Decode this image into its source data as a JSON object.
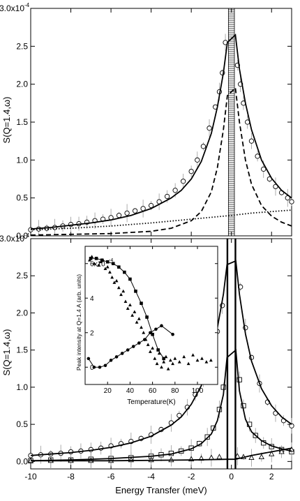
{
  "chart_data": [
    {
      "type": "scatter",
      "panel": "top",
      "ylabel": "S(Q=1.4,ω)",
      "xlabel": "",
      "xlim": [
        -10,
        3
      ],
      "ylim": [
        0,
        0.0003
      ],
      "x_ticks": [
        -10,
        -8,
        -6,
        -4,
        -2,
        0,
        2
      ],
      "x_ticklabels_shown": false,
      "y_ticks": [
        0.0,
        5e-05,
        0.0001,
        0.00015,
        0.0002,
        0.00025,
        0.0003
      ],
      "y_ticklabels": [
        "0.0",
        "0.5",
        "1.0",
        "1.5",
        "2.0",
        "2.5",
        "3.0x10"
      ],
      "y_multiplier_exponent": "-4",
      "shaded_band_x": [
        -0.15,
        0.15
      ],
      "series": [
        {
          "kind": "points",
          "marker": "open-circle",
          "x": [
            -10,
            -9.6,
            -9.2,
            -8.8,
            -8.4,
            -8.0,
            -7.6,
            -7.2,
            -6.8,
            -6.4,
            -6.0,
            -5.6,
            -5.2,
            -4.8,
            -4.4,
            -4.0,
            -3.6,
            -3.2,
            -2.8,
            -2.4,
            -2.0,
            -1.7,
            -1.4,
            -1.1,
            -0.8,
            -0.6,
            -0.45,
            -0.3,
            0.3,
            0.45,
            0.6,
            0.8,
            1.0,
            1.3,
            1.6,
            1.9,
            2.2,
            2.5,
            2.8,
            3.0
          ],
          "y": [
            8e-06,
            9e-06,
            1e-05,
            1.1e-05,
            1.3e-05,
            1.5e-05,
            1.6e-05,
            1.8e-05,
            2e-05,
            2.2e-05,
            2.4e-05,
            2.7e-05,
            3e-05,
            3.3e-05,
            3.6e-05,
            4e-05,
            4.5e-05,
            5.2e-05,
            6e-05,
            7.2e-05,
            8.5e-05,
            0.0001,
            0.000118,
            0.000142,
            0.00017,
            0.00019,
            0.000215,
            0.000255,
            0.000225,
            0.0002,
            0.000175,
            0.00015,
            0.000125,
            0.000105,
            8.8e-05,
            7.5e-05,
            6.5e-05,
            5.7e-05,
            5e-05,
            4.5e-05
          ]
        },
        {
          "kind": "line",
          "style": "solid",
          "x": [
            -10,
            -9,
            -8,
            -7,
            -6,
            -5,
            -4,
            -3,
            -2.5,
            -2,
            -1.5,
            -1.0,
            -0.7,
            -0.4,
            -0.2,
            0.2,
            0.4,
            0.7,
            1.0,
            1.5,
            2.0,
            2.5,
            3.0
          ],
          "y": [
            9e-06,
            1.1e-05,
            1.4e-05,
            1.7e-05,
            2.1e-05,
            2.7e-05,
            3.6e-05,
            5e-05,
            6e-05,
            7.5e-05,
            9.8e-05,
            0.000135,
            0.00017,
            0.000215,
            0.000255,
            0.000265,
            0.00022,
            0.000175,
            0.00014,
            0.0001,
            7.6e-05,
            6e-05,
            5e-05
          ]
        },
        {
          "kind": "line",
          "style": "dashed",
          "x": [
            -10,
            -8,
            -6,
            -4,
            -3,
            -2,
            -1.5,
            -1.0,
            -0.7,
            -0.4,
            -0.2,
            0.2,
            0.4,
            0.7,
            1.0,
            1.5,
            2.0,
            2.5,
            3.0
          ],
          "y": [
            1e-06,
            2e-06,
            3e-06,
            6e-06,
            1e-05,
            2e-05,
            3.2e-05,
            5.8e-05,
            9e-05,
            0.00014,
            0.000185,
            0.000195,
            0.00015,
            0.0001,
            6.8e-05,
            4e-05,
            2.6e-05,
            1.8e-05,
            1.3e-05
          ]
        },
        {
          "kind": "line",
          "style": "dotted",
          "x": [
            -10,
            -8,
            -6,
            -4,
            -2,
            0,
            1,
            2,
            3
          ],
          "y": [
            8e-06,
            1e-05,
            1.3e-05,
            1.7e-05,
            2.2e-05,
            2.7e-05,
            3e-05,
            3.2e-05,
            3.4e-05
          ]
        }
      ]
    },
    {
      "type": "scatter",
      "panel": "bottom",
      "ylabel": "S(Q=1.4,ω)",
      "xlabel": "Energy Transfer (meV)",
      "xlim": [
        -10,
        3
      ],
      "ylim": [
        -1e-05,
        0.0003
      ],
      "x_ticks": [
        -10,
        -8,
        -6,
        -4,
        -2,
        0,
        2
      ],
      "x_ticklabels": [
        "-10",
        "-8",
        "-6",
        "-4",
        "-2",
        "0",
        "2"
      ],
      "y_ticks": [
        0.0,
        5e-05,
        0.0001,
        0.00015,
        0.0002,
        0.00025,
        0.0003
      ],
      "y_ticklabels": [
        "0.0",
        "0.5",
        "1.0",
        "1.5",
        "2.0",
        "2.5",
        "3.0x10"
      ],
      "y_multiplier_exponent": "-4",
      "elastic_lines_x": [
        -0.2,
        0.2
      ],
      "series": [
        {
          "kind": "points",
          "marker": "open-circle",
          "x": [
            -10,
            -9.5,
            -9.0,
            -8.5,
            -8.0,
            -7.5,
            -7.0,
            -6.5,
            -6.0,
            -5.5,
            -5.0,
            -4.5,
            -4.0,
            -3.5,
            -3.0,
            -2.6,
            -2.2,
            -1.8,
            -1.4,
            -1.0,
            -0.7,
            -0.45,
            0.45,
            0.7,
            1.0,
            1.4,
            1.8,
            2.2,
            2.6,
            3.0
          ],
          "y": [
            8e-06,
            9e-06,
            1e-05,
            1.1e-05,
            1.3e-05,
            1.4e-05,
            1.6e-05,
            1.8e-05,
            2.1e-05,
            2.4e-05,
            2.7e-05,
            3.1e-05,
            3.6e-05,
            4.3e-05,
            5.2e-05,
            6.2e-05,
            7.3e-05,
            9e-05,
            0.00011,
            0.00014,
            0.000175,
            0.00021,
            0.000235,
            0.00018,
            0.00014,
            0.000105,
            8e-05,
            6.5e-05,
            5.5e-05,
            4.8e-05
          ]
        },
        {
          "kind": "points",
          "marker": "open-square",
          "x": [
            -10,
            -9,
            -8,
            -7,
            -6,
            -5,
            -4,
            -3.5,
            -3,
            -2.5,
            -2,
            -1.6,
            -1.2,
            -0.9,
            -0.6,
            -0.4,
            0.4,
            0.6,
            0.9,
            1.2,
            1.6,
            2.0,
            2.5,
            3.0
          ],
          "y": [
            1e-06,
            2e-06,
            2e-06,
            3e-06,
            4e-06,
            5e-06,
            7e-06,
            9e-06,
            1.1e-05,
            1.4e-05,
            1.8e-05,
            2.4e-05,
            3.3e-05,
            4.5e-05,
            7e-05,
            0.0001,
            0.00011,
            7.5e-05,
            5e-05,
            3.5e-05,
            2.5e-05,
            2e-05,
            1.6e-05,
            1.3e-05
          ]
        },
        {
          "kind": "points",
          "marker": "open-triangle",
          "x": [
            -10,
            -9,
            -8,
            -7,
            -6,
            -5,
            -4,
            -3,
            -2,
            -1.5,
            -1,
            -0.6,
            0.3,
            0.6,
            1,
            1.5,
            2,
            2.5,
            3
          ],
          "y": [
            1e-06,
            1e-06,
            1e-06,
            1e-06,
            1e-06,
            2e-06,
            2e-06,
            2e-06,
            3e-06,
            4e-06,
            5e-06,
            6e-06,
            7e-06,
            6e-06,
            5e-06,
            6e-06,
            1e-05,
            1.3e-05,
            1.6e-05
          ]
        },
        {
          "kind": "line",
          "style": "solid",
          "x": [
            -10,
            -9,
            -8,
            -7,
            -6,
            -5,
            -4,
            -3,
            -2.5,
            -2,
            -1.5,
            -1.0,
            -0.7,
            -0.4,
            -0.22,
            0.22,
            0.4,
            0.7,
            1.0,
            1.5,
            2.0,
            2.5,
            3.0
          ],
          "y": [
            8e-06,
            1e-05,
            1.2e-05,
            1.5e-05,
            1.9e-05,
            2.5e-05,
            3.4e-05,
            4.9e-05,
            6e-05,
            7.7e-05,
            0.000102,
            0.000142,
            0.00018,
            0.000225,
            0.000265,
            0.00027,
            0.000225,
            0.000172,
            0.000135,
            9.8e-05,
            7.5e-05,
            6e-05,
            5e-05
          ]
        },
        {
          "kind": "line",
          "style": "solid",
          "x": [
            -10,
            -8,
            -6,
            -4,
            -3,
            -2,
            -1.5,
            -1.0,
            -0.7,
            -0.4,
            -0.22,
            0.22,
            0.4,
            0.7,
            1.0,
            1.5,
            2.0,
            2.5,
            3.0
          ],
          "y": [
            1e-06,
            2e-06,
            4e-06,
            7e-06,
            1e-05,
            1.7e-05,
            2.4e-05,
            3.7e-05,
            5.5e-05,
            9e-05,
            0.00014,
            0.00015,
            9.5e-05,
            5.7e-05,
            4e-05,
            2.8e-05,
            2.1e-05,
            1.7e-05,
            1.4e-05
          ]
        },
        {
          "kind": "line",
          "style": "solid",
          "x": [
            -10,
            -6,
            -2,
            -0.2,
            0.2,
            1,
            2,
            3
          ],
          "y": [
            1e-06,
            1e-06,
            2e-06,
            3e-06,
            3e-06,
            8e-06,
            1.3e-05,
            1.8e-05
          ]
        }
      ],
      "inset": {
        "type": "scatter",
        "xlabel": "Temperature(K)",
        "ylabel": "Peak intensity at Q=1.4 A (arb. units)",
        "xlim": [
          0,
          118
        ],
        "ylim": [
          -1,
          7
        ],
        "x_ticks": [
          20,
          40,
          60,
          80,
          100
        ],
        "x_ticklabels": [
          "20",
          "40",
          "60",
          "80",
          "100"
        ],
        "y_ticks": [
          0,
          2,
          4,
          6
        ],
        "y_ticklabels": [
          "0",
          "2",
          "4",
          "6x10"
        ],
        "y_multiplier_exponent": "-4",
        "series": [
          {
            "kind": "points+line",
            "marker": "filled-square",
            "x": [
              5,
              10,
              15,
              20,
              25,
              30,
              35,
              40,
              45,
              50,
              55,
              60,
              65,
              70
            ],
            "y": [
              6.3,
              6.3,
              6.2,
              6.1,
              6.0,
              5.8,
              5.5,
              5.1,
              4.4,
              3.7,
              2.9,
              1.9,
              1.0,
              0.5
            ]
          },
          {
            "kind": "points",
            "marker": "filled-triangle",
            "x": [
              4,
              6,
              8,
              10,
              12,
              14,
              16,
              18,
              20,
              22,
              24,
              26,
              28,
              30,
              32,
              34,
              36,
              38,
              40,
              42,
              44,
              46,
              48,
              50,
              52,
              54,
              56,
              58,
              60,
              62,
              64,
              66,
              68,
              70,
              72,
              74,
              76,
              78,
              80,
              84,
              88,
              92,
              96,
              100,
              104,
              108,
              112
            ],
            "y": [
              6.2,
              6.4,
              6.0,
              6.3,
              5.9,
              6.1,
              6.2,
              5.7,
              5.8,
              5.5,
              5.2,
              4.9,
              5.0,
              4.6,
              4.2,
              4.4,
              3.8,
              3.4,
              3.6,
              3.0,
              3.2,
              2.6,
              2.8,
              2.3,
              2.0,
              1.6,
              1.3,
              0.9,
              1.1,
              0.5,
              0.2,
              0.8,
              0.0,
              0.3,
              0.6,
              -0.1,
              0.4,
              0.2,
              0.5,
              0.3,
              0.6,
              0.2,
              0.7,
              0.4,
              0.5,
              0.3,
              0.4
            ]
          },
          {
            "kind": "points+line",
            "marker": "filled-circle",
            "x": [
              3,
              8,
              13,
              18,
              23,
              28,
              33,
              38,
              43,
              48,
              53,
              58,
              63,
              68,
              78
            ],
            "y": [
              0.5,
              0.0,
              0.0,
              0.1,
              0.4,
              0.6,
              0.8,
              1.0,
              1.2,
              1.4,
              1.6,
              2.0,
              2.2,
              2.4,
              1.9
            ]
          }
        ]
      }
    }
  ]
}
